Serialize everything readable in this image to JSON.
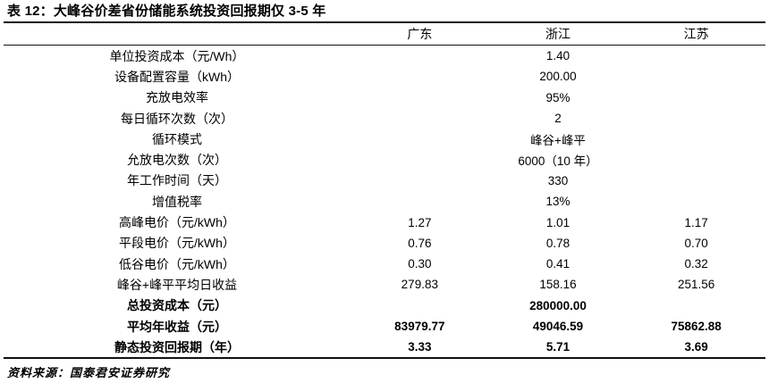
{
  "title": "表 12：大峰谷价差省份储能系统投资回报期仅 3-5 年",
  "table": {
    "columns": [
      "广东",
      "浙江",
      "江苏"
    ],
    "rows": [
      {
        "label": "单位投资成本（元/Wh）",
        "merged": "1.40"
      },
      {
        "label": "设备配置容量（kWh）",
        "merged": "200.00"
      },
      {
        "label": "充放电效率",
        "merged": "95%"
      },
      {
        "label": "每日循环次数（次）",
        "merged": "2"
      },
      {
        "label": "循环模式",
        "merged": "峰谷+峰平"
      },
      {
        "label": "允放电次数（次）",
        "merged": "6000（10 年）"
      },
      {
        "label": "年工作时间（天）",
        "merged": "330"
      },
      {
        "label": "增值税率",
        "merged": "13%"
      },
      {
        "label": "高峰电价（元/kWh）",
        "values": [
          "1.27",
          "1.01",
          "1.17"
        ]
      },
      {
        "label": "平段电价（元/kWh）",
        "values": [
          "0.76",
          "0.78",
          "0.70"
        ]
      },
      {
        "label": "低谷电价（元/kWh）",
        "values": [
          "0.30",
          "0.41",
          "0.32"
        ]
      },
      {
        "label": "峰谷+峰平平均日收益",
        "values": [
          "279.83",
          "158.16",
          "251.56"
        ]
      },
      {
        "label": "总投资成本（元）",
        "merged": "280000.00",
        "bold": true
      },
      {
        "label": "平均年收益（元）",
        "values": [
          "83979.77",
          "49046.59",
          "75862.88"
        ],
        "bold": true
      },
      {
        "label": "静态投资回报期（年）",
        "values": [
          "3.33",
          "5.71",
          "3.69"
        ],
        "bold": true
      }
    ]
  },
  "source": "资料来源：国泰君安证券研究"
}
